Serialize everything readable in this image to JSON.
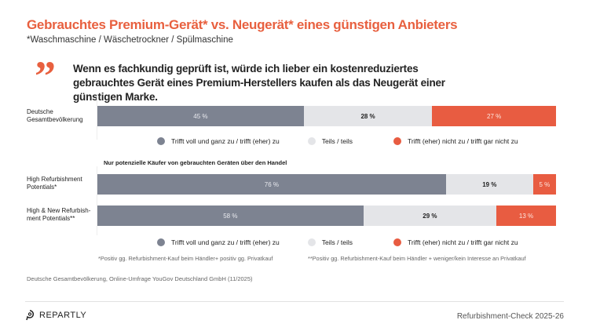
{
  "title": "Gebrauchtes Premium-Gerät* vs. Neugerät* eines günstigen Anbieters",
  "subtitle": "*Waschmaschine / Wäschetrockner / Spülmaschine",
  "quote_mark": "”",
  "statement": "Wenn es fachkundig geprüft ist, würde ich lieber ein kostenreduziertes gebrauchtes Gerät eines Premium-Herstellers kaufen als das Neugerät einer günstigen Marke.",
  "colors": {
    "agree": "#7d8391",
    "neutral": "#e4e5e8",
    "disagree": "#e85c41",
    "accent": "#e8603f"
  },
  "chart_data": [
    {
      "type": "bar",
      "orientation": "horizontal-stacked-100",
      "categories": [
        "Deutsche Gesamtbevölkerung"
      ],
      "series": [
        {
          "name": "Trifft voll und ganz zu / trifft (eher) zu",
          "values": [
            45
          ]
        },
        {
          "name": "Teils / teils",
          "values": [
            28
          ]
        },
        {
          "name": "Trifft (eher) nicht zu / trifft gar nicht zu",
          "values": [
            27
          ]
        }
      ],
      "value_labels": [
        [
          "45 %"
        ],
        [
          "28 %"
        ],
        [
          "27 %"
        ]
      ],
      "legend": "bottom"
    },
    {
      "type": "bar",
      "orientation": "horizontal-stacked-100",
      "subtitle": "Nur potenzielle Käufer von gebrauchten Geräten über den Handel",
      "categories": [
        "High Refurbishment Potentials*",
        "High & New Refurbish-ment Potentials**"
      ],
      "series": [
        {
          "name": "Trifft voll und ganz zu / trifft (eher) zu",
          "values": [
            76,
            58
          ]
        },
        {
          "name": "Teils / teils",
          "values": [
            19,
            29
          ]
        },
        {
          "name": "Trifft (eher) nicht zu / trifft gar nicht zu",
          "values": [
            5,
            13
          ]
        }
      ],
      "value_labels": [
        [
          "76 %",
          "58 %"
        ],
        [
          "19 %",
          "29 %"
        ],
        [
          "5 %",
          "13 %"
        ]
      ],
      "legend": "bottom"
    }
  ],
  "footnotes": [
    "*Positiv gg. Refurbishment-Kauf beim Händler+ positiv gg. Privatkauf",
    "**Positiv gg. Refurbishment-Kauf beim Händler + weniger/kein Interesse an Privatkauf"
  ],
  "source": "Deutsche Gesamtbevölkerung, Online-Umfrage YouGov Deutschland GmbH (11/2025)",
  "brand": "REPARTLY",
  "footer_right": "Refurbishment-Check 2025-26"
}
